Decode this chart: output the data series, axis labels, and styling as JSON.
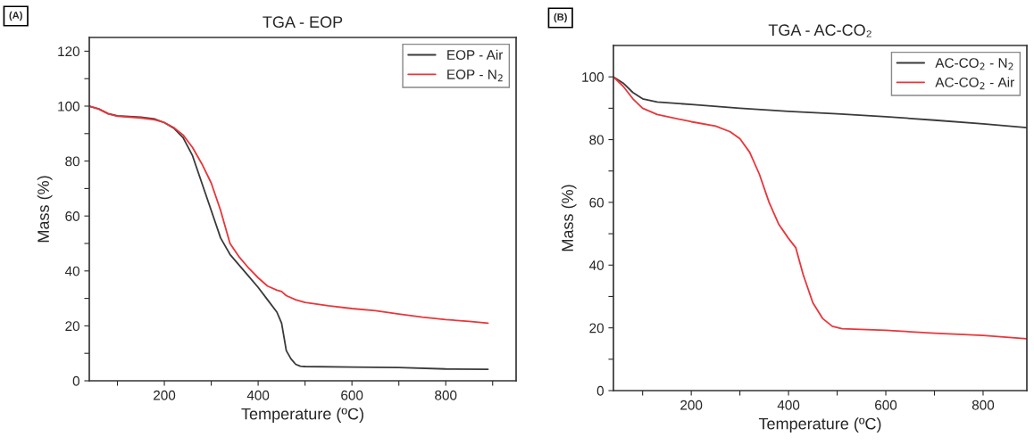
{
  "chart_data": [
    {
      "type": "line",
      "title": "TGA - EOP",
      "xlabel": "Temperature (ºC)",
      "ylabel": "Mass (%)",
      "annotations": [
        "(A)"
      ],
      "xlim": [
        40,
        950
      ],
      "ylim": [
        0,
        125
      ],
      "xticks": [
        {
          "value": 100,
          "label": null
        },
        200,
        {
          "value": 300,
          "label": null
        },
        400,
        {
          "value": 500,
          "label": null
        },
        600,
        {
          "value": 700,
          "label": null
        },
        800,
        {
          "value": 900,
          "label": null
        }
      ],
      "yticks": [
        0,
        {
          "value": 10,
          "label": null
        },
        20,
        {
          "value": 30,
          "label": null
        },
        40,
        {
          "value": 50,
          "label": null
        },
        60,
        {
          "value": 70,
          "label": null
        },
        80,
        {
          "value": 90,
          "label": null
        },
        100,
        {
          "value": 110,
          "label": null
        },
        120
      ],
      "legend": "top right",
      "grid": false,
      "series": [
        {
          "name": "EOP - Air",
          "color": "#3a3a3a",
          "x": [
            40,
            60,
            80,
            100,
            150,
            180,
            200,
            220,
            240,
            260,
            280,
            300,
            320,
            340,
            360,
            380,
            400,
            420,
            440,
            450,
            455,
            460,
            470,
            480,
            490,
            500,
            600,
            700,
            800,
            890
          ],
          "values": [
            100,
            99,
            97.3,
            96.5,
            96,
            95.3,
            94,
            92,
            88.5,
            82,
            72,
            62,
            52,
            46,
            42,
            38,
            34,
            29.5,
            25,
            21,
            16,
            11,
            8,
            6,
            5.3,
            5.2,
            5,
            4.8,
            4.3,
            4.2
          ]
        },
        {
          "name": "EOP - N$_{2}$",
          "color": "#e8363a",
          "x": [
            40,
            60,
            80,
            100,
            150,
            180,
            200,
            220,
            240,
            260,
            280,
            300,
            320,
            340,
            360,
            380,
            400,
            420,
            440,
            450,
            460,
            480,
            500,
            550,
            600,
            650,
            700,
            750,
            800,
            850,
            890
          ],
          "values": [
            100,
            99,
            97.2,
            96.3,
            95.7,
            95,
            94,
            92.2,
            89.5,
            85,
            79,
            72,
            62,
            50,
            45,
            41,
            37.5,
            34.5,
            33,
            32.5,
            31,
            29.5,
            28.5,
            27.3,
            26.3,
            25.5,
            24.3,
            23.2,
            22.3,
            21.6,
            21
          ]
        }
      ]
    },
    {
      "type": "line",
      "title": "TGA - AC-CO₂",
      "xlabel": "Temperature (ºC)",
      "ylabel": "Mass (%)",
      "annotations": [
        "(B)"
      ],
      "xlim": [
        40,
        890
      ],
      "ylim": [
        0,
        110
      ],
      "xticks": [
        {
          "value": 100,
          "label": null
        },
        200,
        {
          "value": 300,
          "label": null
        },
        400,
        {
          "value": 500,
          "label": null
        },
        600,
        {
          "value": 700,
          "label": null
        },
        800
      ],
      "yticks": [
        0,
        {
          "value": 10,
          "label": null
        },
        20,
        {
          "value": 30,
          "label": null
        },
        40,
        {
          "value": 50,
          "label": null
        },
        60,
        {
          "value": 70,
          "label": null
        },
        80,
        {
          "value": 90,
          "label": null
        },
        100
      ],
      "legend": "top right",
      "grid": false,
      "series": [
        {
          "name": "AC-CO$_{2}$ - N$_{2}$",
          "color": "#3a3a3a",
          "x": [
            40,
            60,
            80,
            100,
            130,
            200,
            300,
            400,
            500,
            600,
            700,
            800,
            890
          ],
          "values": [
            100,
            98,
            95,
            93,
            92,
            91.2,
            90,
            89,
            88.2,
            87.3,
            86.2,
            85,
            83.8
          ]
        },
        {
          "name": "AC-CO$_{2}$ - Air",
          "color": "#e8363a",
          "x": [
            40,
            60,
            80,
            100,
            130,
            200,
            250,
            280,
            300,
            320,
            340,
            360,
            380,
            400,
            415,
            430,
            450,
            470,
            490,
            510,
            600,
            700,
            800,
            890
          ],
          "values": [
            100,
            97,
            93,
            90,
            88,
            85.7,
            84.3,
            82.5,
            80.3,
            76,
            69,
            60,
            53,
            48.5,
            45.5,
            37,
            28,
            23,
            20.5,
            19.7,
            19.2,
            18.3,
            17.6,
            16.5
          ]
        }
      ]
    }
  ]
}
